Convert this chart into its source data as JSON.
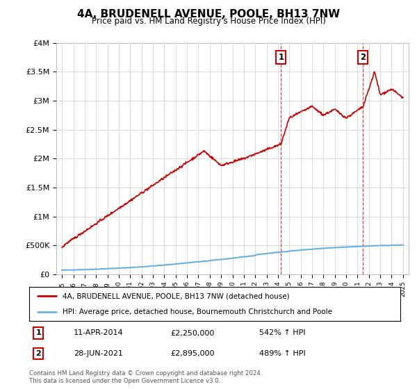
{
  "title": "4A, BRUDENELL AVENUE, POOLE, BH13 7NW",
  "subtitle": "Price paid vs. HM Land Registry's House Price Index (HPI)",
  "ylim": [
    0,
    4000000
  ],
  "yticks": [
    0,
    500000,
    1000000,
    1500000,
    2000000,
    2500000,
    3000000,
    3500000,
    4000000
  ],
  "ytick_labels": [
    "£0",
    "£500K",
    "£1M",
    "£1.5M",
    "£2M",
    "£2.5M",
    "£3M",
    "£3.5M",
    "£4M"
  ],
  "sale1_date": 2014.27,
  "sale1_price": 2250000,
  "sale2_date": 2021.49,
  "sale2_price": 2895000,
  "hpi_color": "#6ab0de",
  "sale_color": "#cc0000",
  "vline_color": "#cc0000",
  "legend_sale_label": "4A, BRUDENELL AVENUE, POOLE, BH13 7NW (detached house)",
  "legend_hpi_label": "HPI: Average price, detached house, Bournemouth Christchurch and Poole",
  "annotation1": [
    "1",
    "11-APR-2014",
    "£2,250,000",
    "542% ↑ HPI"
  ],
  "annotation2": [
    "2",
    "28-JUN-2021",
    "£2,895,000",
    "489% ↑ HPI"
  ],
  "footer": "Contains HM Land Registry data © Crown copyright and database right 2024.\nThis data is licensed under the Open Government Licence v3.0.",
  "background_color": "#ffffff",
  "grid_color": "#cccccc"
}
